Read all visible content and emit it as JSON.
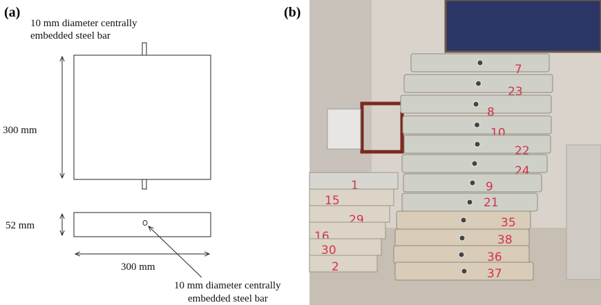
{
  "panel_a": {
    "label": "(a)",
    "top_note": [
      "10 mm diameter centrally",
      "embedded steel bar"
    ],
    "height_dim": "300 mm",
    "thickness_dim": "52 mm",
    "width_dim": "300 mm",
    "bottom_note": [
      "10 mm diameter centrally",
      "embedded steel bar"
    ]
  },
  "panel_b": {
    "label": "(b)",
    "center_stack": [
      "7",
      "23",
      "8",
      "10",
      "22",
      "24",
      "9",
      "21",
      "35",
      "38",
      "36",
      "37"
    ],
    "left_stack": [
      "1",
      "15",
      "29",
      "16",
      "30",
      "2"
    ]
  }
}
